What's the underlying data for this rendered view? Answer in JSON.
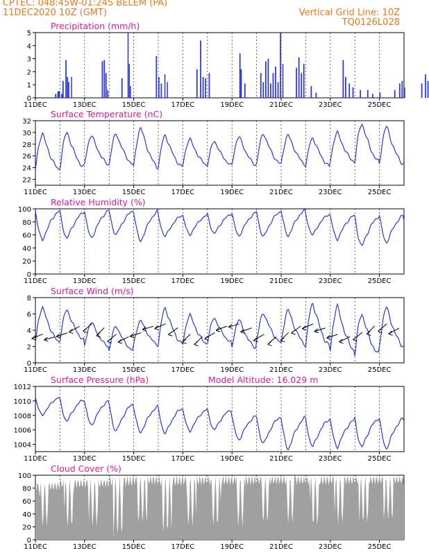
{
  "header": {
    "line1": "CPTEC:   048:45W-01:24S   BELEM (PA)",
    "line2": "11DEC2020  10Z (GMT)",
    "right1": "Vertical Grid Line: 10Z",
    "right2": "TQ0126L028"
  },
  "colors": {
    "header": "#e8781e",
    "title": "#e0189a",
    "series": "#2a35e0",
    "cloud": "#a0a0a0",
    "frame": "#000000"
  },
  "x_ticks": [
    "11DEC",
    "13DEC",
    "15DEC",
    "17DEC",
    "19DEC",
    "21DEC",
    "23DEC",
    "25DEC"
  ],
  "chart_data": [
    {
      "type": "bar",
      "title": "Precipitation (mm/h)",
      "ylim": [
        0,
        5
      ],
      "yticks": [
        0,
        1,
        2,
        3,
        4,
        5
      ],
      "x_ticks": [
        "11DEC",
        "13DEC",
        "15DEC",
        "17DEC",
        "19DEC",
        "21DEC",
        "23DEC",
        "25DEC"
      ],
      "events": [
        [
          1.8,
          0.4,
          0.3
        ],
        [
          1.9,
          0.7,
          0.5
        ],
        [
          2.05,
          0.4,
          0.3
        ],
        [
          2.1,
          0.35,
          1.3
        ],
        [
          2.22,
          0.35,
          2.9
        ],
        [
          2.28,
          0.35,
          1.6
        ],
        [
          2.33,
          0.35,
          1.2
        ],
        [
          2.45,
          0.3,
          1.6
        ],
        [
          3.7,
          0.35,
          2.8
        ],
        [
          3.78,
          0.35,
          2.9
        ],
        [
          3.85,
          0.35,
          1.9
        ],
        [
          3.92,
          0.35,
          0.6
        ],
        [
          4.5,
          0.35,
          1.5
        ],
        [
          4.75,
          0.3,
          5.0
        ],
        [
          4.8,
          0.3,
          2.6
        ],
        [
          4.85,
          0.3,
          0.9
        ],
        [
          5.9,
          0.35,
          3.2
        ],
        [
          6.0,
          0.35,
          1.6
        ],
        [
          6.1,
          0.35,
          1.1
        ],
        [
          6.25,
          0.3,
          1.8
        ],
        [
          6.35,
          0.3,
          1.2
        ],
        [
          7.55,
          0.35,
          2.2
        ],
        [
          7.7,
          0.35,
          4.4
        ],
        [
          7.8,
          0.35,
          1.6
        ],
        [
          7.9,
          0.35,
          1.5
        ],
        [
          8.05,
          0.35,
          1.9
        ],
        [
          9.3,
          0.35,
          3.4
        ],
        [
          9.35,
          0.35,
          2.2
        ],
        [
          9.5,
          0.35,
          1.1
        ],
        [
          10.15,
          0.35,
          1.9
        ],
        [
          10.25,
          0.35,
          1.2
        ],
        [
          10.35,
          0.35,
          2.8
        ],
        [
          10.45,
          0.35,
          3.0
        ],
        [
          10.55,
          0.35,
          1.1
        ],
        [
          10.65,
          0.35,
          1.9
        ],
        [
          10.75,
          0.35,
          2.4
        ],
        [
          10.85,
          0.35,
          1.2
        ],
        [
          10.95,
          0.35,
          5.0
        ],
        [
          11.05,
          0.3,
          2.6
        ],
        [
          11.6,
          0.35,
          2.3
        ],
        [
          11.7,
          0.35,
          3.1
        ],
        [
          11.8,
          0.35,
          1.9
        ],
        [
          11.9,
          0.35,
          2.6
        ],
        [
          12.2,
          0.35,
          0.9
        ],
        [
          12.4,
          0.35,
          0.4
        ],
        [
          13.5,
          0.35,
          2.9
        ],
        [
          13.6,
          0.35,
          1.6
        ],
        [
          13.75,
          0.35,
          1.1
        ],
        [
          13.9,
          0.35,
          0.8
        ],
        [
          14.2,
          0.35,
          0.6
        ],
        [
          14.5,
          0.35,
          0.6
        ],
        [
          14.7,
          0.35,
          0.3
        ],
        [
          15.0,
          0.35,
          0.4
        ],
        [
          15.6,
          0.35,
          0.6
        ],
        [
          15.8,
          0.35,
          1.1
        ],
        [
          15.9,
          0.35,
          1.3
        ],
        [
          16.0,
          0.35,
          0.8
        ],
        [
          16.7,
          0.35,
          1.1
        ],
        [
          16.85,
          0.35,
          1.8
        ],
        [
          16.95,
          0.35,
          1.3
        ],
        [
          17.05,
          0.35,
          0.6
        ],
        [
          17.8,
          0.35,
          1.6
        ],
        [
          17.95,
          0.35,
          2.5
        ],
        [
          18.0,
          0.35,
          2.1
        ],
        [
          18.1,
          0.35,
          1.9
        ],
        [
          18.2,
          0.35,
          1.3
        ]
      ]
    },
    {
      "type": "line",
      "title": "Surface Temperature (nC)",
      "ylim": [
        21,
        32
      ],
      "yticks": [
        22,
        24,
        26,
        28,
        30,
        32
      ],
      "x_ticks": [
        "11DEC",
        "13DEC",
        "15DEC",
        "17DEC",
        "19DEC",
        "21DEC",
        "23DEC",
        "25DEC"
      ],
      "daily": [
        [
          23.6,
          29.8
        ],
        [
          24.0,
          30.0
        ],
        [
          24.5,
          29.5
        ],
        [
          24.5,
          29.8
        ],
        [
          24.1,
          30.8
        ],
        [
          24.1,
          29.5
        ],
        [
          24.4,
          28.9
        ],
        [
          24.4,
          28.5
        ],
        [
          24.4,
          29.3
        ],
        [
          24.6,
          29.8
        ],
        [
          24.6,
          29.6
        ],
        [
          24.2,
          29.1
        ],
        [
          25.0,
          30.0
        ],
        [
          25.0,
          31.5
        ],
        [
          24.6,
          31.0
        ],
        [
          24.7,
          28.9
        ]
      ]
    },
    {
      "type": "line",
      "title": "Relative Humidity (%)",
      "ylim": [
        0,
        100
      ],
      "yticks": [
        0,
        20,
        40,
        60,
        80,
        100
      ],
      "x_ticks": [
        "11DEC",
        "13DEC",
        "15DEC",
        "17DEC",
        "19DEC",
        "21DEC",
        "23DEC",
        "25DEC"
      ],
      "daily": [
        [
          97,
          52
        ],
        [
          95,
          55
        ],
        [
          97,
          55
        ],
        [
          97,
          60
        ],
        [
          96,
          50
        ],
        [
          90,
          58
        ],
        [
          90,
          60
        ],
        [
          92,
          62
        ],
        [
          94,
          58
        ],
        [
          96,
          57
        ],
        [
          98,
          58
        ],
        [
          92,
          60
        ],
        [
          90,
          53
        ],
        [
          88,
          43
        ],
        [
          90,
          48
        ],
        [
          82,
          62
        ]
      ]
    },
    {
      "type": "line",
      "title": "Surface Wind (m/s)",
      "ylim": [
        0,
        8
      ],
      "yticks": [
        0,
        2,
        4,
        6,
        8
      ],
      "x_ticks": [
        "11DEC",
        "13DEC",
        "15DEC",
        "17DEC",
        "19DEC",
        "21DEC",
        "23DEC",
        "25DEC"
      ],
      "daily": [
        [
          2.5,
          6.8
        ],
        [
          2.8,
          6.5
        ],
        [
          2.0,
          5.0
        ],
        [
          1.5,
          4.5
        ],
        [
          2.2,
          5.2
        ],
        [
          2.3,
          6.7
        ],
        [
          2.3,
          5.9
        ],
        [
          2.5,
          5.5
        ],
        [
          1.8,
          5.3
        ],
        [
          2.5,
          6.1
        ],
        [
          2.3,
          6.5
        ],
        [
          2.0,
          7.3
        ],
        [
          1.5,
          6.9
        ],
        [
          1.0,
          6.0
        ],
        [
          2.0,
          6.8
        ],
        [
          2.0,
          6.2
        ]
      ]
    },
    {
      "type": "line",
      "title": "Surface Pressure (hPa)",
      "annotation": "Model Altitude: 16.029 m",
      "ylim": [
        1003,
        1012
      ],
      "yticks": [
        1004,
        1006,
        1008,
        1010,
        1012
      ],
      "x_ticks": [
        "11DEC",
        "13DEC",
        "15DEC",
        "17DEC",
        "19DEC",
        "21DEC",
        "23DEC",
        "25DEC"
      ],
      "daily": [
        [
          1010.5,
          1008.0
        ],
        [
          1010.2,
          1007.2
        ],
        [
          1010.0,
          1006.6
        ],
        [
          1009.6,
          1005.8
        ],
        [
          1009.2,
          1005.6
        ],
        [
          1009.0,
          1005.5
        ],
        [
          1008.8,
          1005.8
        ],
        [
          1008.8,
          1006.0
        ],
        [
          1007.9,
          1004.6
        ],
        [
          1007.8,
          1004.1
        ],
        [
          1007.7,
          1003.3
        ],
        [
          1007.5,
          1003.7
        ],
        [
          1007.4,
          1003.6
        ],
        [
          1007.6,
          1003.6
        ],
        [
          1007.6,
          1003.4
        ],
        [
          1007.3,
          1003.5
        ]
      ]
    },
    {
      "type": "area",
      "title": "Cloud Cover (%)",
      "ylim": [
        0,
        100
      ],
      "yticks": [
        0,
        20,
        40,
        60,
        80,
        100
      ],
      "x_ticks": [
        "11DEC",
        "13DEC",
        "15DEC",
        "17DEC",
        "19DEC",
        "21DEC",
        "23DEC",
        "25DEC"
      ],
      "daily": [
        [
          20,
          90
        ],
        [
          18,
          95
        ],
        [
          20,
          95
        ],
        [
          5,
          100
        ],
        [
          25,
          100
        ],
        [
          10,
          100
        ],
        [
          20,
          100
        ],
        [
          20,
          100
        ],
        [
          20,
          100
        ],
        [
          25,
          100
        ],
        [
          25,
          100
        ],
        [
          20,
          100
        ],
        [
          25,
          100
        ],
        [
          25,
          100
        ],
        [
          30,
          100
        ],
        [
          20,
          100
        ]
      ]
    }
  ]
}
